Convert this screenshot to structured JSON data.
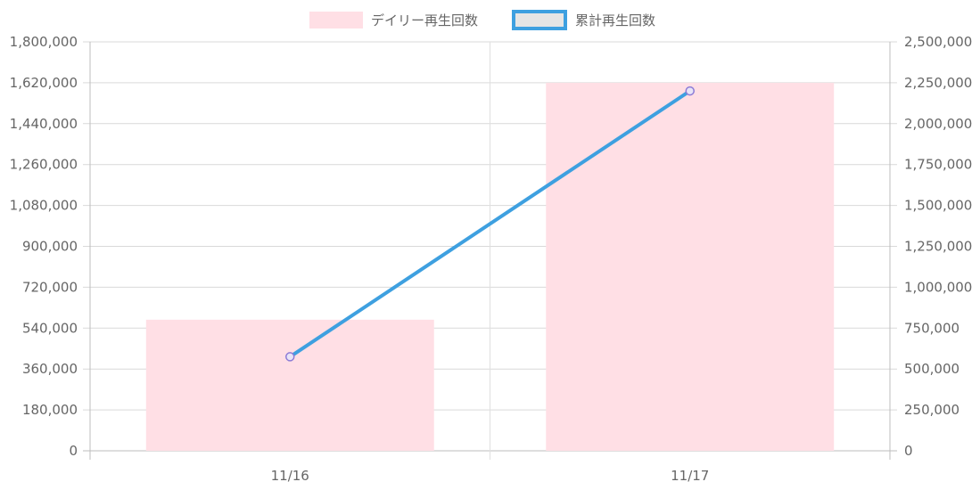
{
  "chart_data": {
    "type": "bar",
    "categories": [
      "11/16",
      "11/17"
    ],
    "series": [
      {
        "name": "デイリー再生回数",
        "type": "bar",
        "axis": "left",
        "values": [
          577000,
          1620000
        ],
        "color": "#ffdfe5"
      },
      {
        "name": "累計再生回数",
        "type": "line",
        "axis": "right",
        "values": [
          575000,
          2200000
        ],
        "color": "#3ea0e0",
        "legend_fill": "#e5e5e5",
        "point_color": "#8c7bd6"
      }
    ],
    "y_left": {
      "min": 0,
      "max": 1800000,
      "ticks": [
        "0",
        "180,000",
        "360,000",
        "540,000",
        "720,000",
        "900,000",
        "1,080,000",
        "1,260,000",
        "1,440,000",
        "1,620,000",
        "1,800,000"
      ]
    },
    "y_right": {
      "min": 0,
      "max": 2500000,
      "ticks": [
        "0",
        "250,000",
        "500,000",
        "750,000",
        "1,000,000",
        "1,250,000",
        "1,500,000",
        "1,750,000",
        "2,000,000",
        "2,250,000",
        "2,500,000"
      ]
    },
    "legend": "top-center",
    "grid": true
  }
}
